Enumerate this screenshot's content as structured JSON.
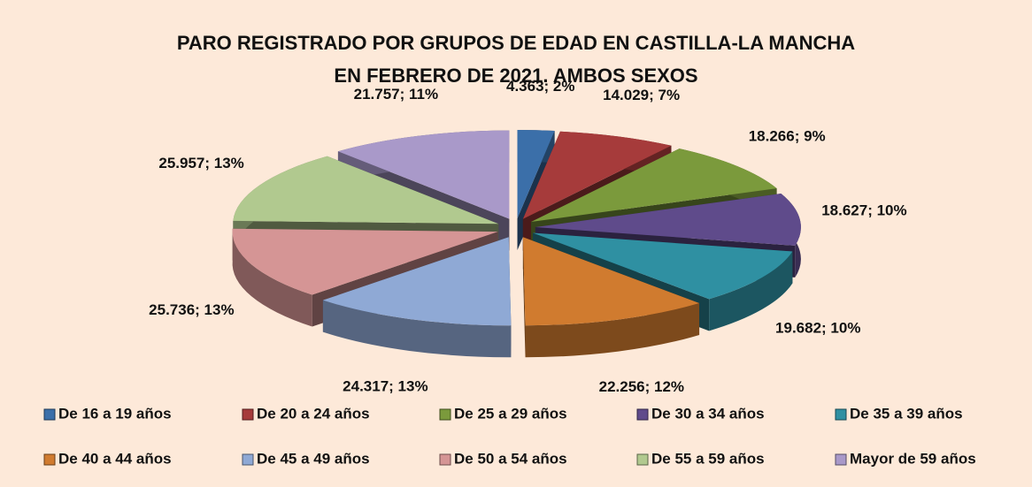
{
  "chart_data": {
    "type": "pie",
    "title": "PARO REGISTRADO POR GRUPOS DE EDAD EN CASTILLA-LA MANCHA EN FEBRERO DE 2021. AMBOS SEXOS",
    "categories": [
      "De 16 a 19 años",
      "De 20 a 24 años",
      "De 25 a 29 años",
      "De 30 a 34 años",
      "De 35 a 39 años",
      "De 40 a 44 años",
      "De 45 a 49 años",
      "De 50 a 54 años",
      "De 55 a 59 años",
      "Mayor de 59 años"
    ],
    "values": [
      4363,
      14029,
      18266,
      18627,
      19682,
      22256,
      24317,
      25736,
      25957,
      21757
    ],
    "value_labels": [
      "4.363; 2%",
      "14.029; 7%",
      "18.266; 9%",
      "18.627; 10%",
      "19.682; 10%",
      "22.256; 12%",
      "24.317; 13%",
      "25.736; 13%",
      "25.957; 13%",
      "21.757; 11%"
    ],
    "colors": [
      "#3b6fa9",
      "#a63b3b",
      "#7b9a3c",
      "#5f4b8b",
      "#2f90a2",
      "#d07b2f",
      "#8fa9d5",
      "#d59595",
      "#b1c98f",
      "#a999c9"
    ],
    "legend": "bottom"
  }
}
